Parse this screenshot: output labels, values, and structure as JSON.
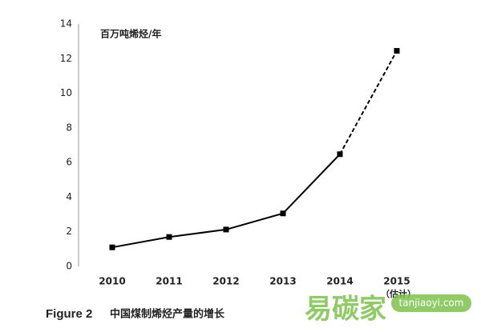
{
  "chart_data": {
    "type": "line",
    "unit_label": "百万吨烯烃/年",
    "categories": [
      "2010",
      "2011",
      "2012",
      "2013",
      "2014",
      "2015"
    ],
    "category_note": "（估计）",
    "series": [
      {
        "color": "#000000",
        "values": [
          1.1,
          1.7,
          2.13,
          3.06,
          6.48,
          12.45
        ]
      }
    ],
    "dashed_last_segment": true,
    "ylim": [
      0,
      14
    ],
    "yticks": [
      0,
      2,
      4,
      6,
      8,
      10,
      12,
      14
    ],
    "grid": false,
    "figure_label": "Figure 2",
    "caption": "中国煤制烯烃产量的增长",
    "watermark": "易碳家",
    "watermark_site": "tanjiaoyi.com"
  }
}
